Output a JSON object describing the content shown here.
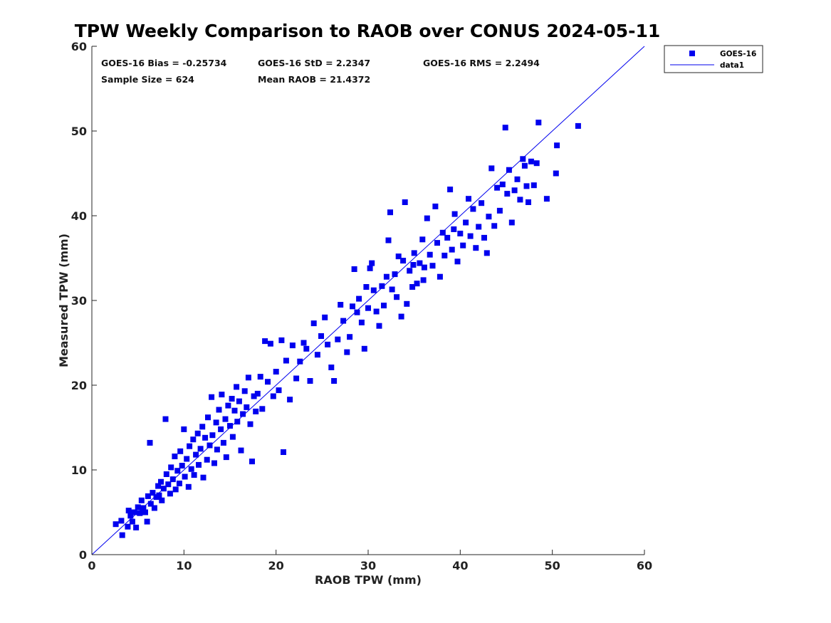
{
  "chart_data": {
    "type": "scatter",
    "title": "TPW Weekly Comparison to RAOB over CONUS 2024-05-11",
    "xlabel": "RAOB TPW (mm)",
    "ylabel": "Measured TPW (mm)",
    "xlim": [
      0,
      60
    ],
    "ylim": [
      0,
      60
    ],
    "xticks": [
      "0",
      "10",
      "20",
      "30",
      "40",
      "50",
      "60"
    ],
    "yticks": [
      "0",
      "10",
      "20",
      "30",
      "40",
      "50",
      "60"
    ],
    "grid": false,
    "legend_position": "outside-top-right",
    "stats": {
      "bias": "GOES-16 Bias = -0.25734",
      "std": "GOES-16 StD = 2.2347",
      "rms": "GOES-16 RMS = 2.2494",
      "sample": "Sample Size = 624",
      "mean": "Mean RAOB = 21.4372"
    },
    "series": [
      {
        "name": "GOES-16",
        "kind": "scatter",
        "color": "#0000ee",
        "points": [
          [
            2.6,
            3.6
          ],
          [
            3.2,
            4.0
          ],
          [
            3.3,
            2.3
          ],
          [
            3.9,
            3.3
          ],
          [
            4.0,
            5.2
          ],
          [
            4.2,
            4.6
          ],
          [
            4.4,
            3.9
          ],
          [
            4.6,
            5.0
          ],
          [
            4.8,
            3.2
          ],
          [
            5.0,
            5.6
          ],
          [
            5.2,
            4.9
          ],
          [
            5.4,
            6.4
          ],
          [
            5.6,
            5.5
          ],
          [
            5.8,
            5.0
          ],
          [
            6.0,
            3.9
          ],
          [
            6.1,
            6.9
          ],
          [
            6.3,
            13.2
          ],
          [
            6.4,
            6.0
          ],
          [
            6.6,
            7.3
          ],
          [
            6.8,
            5.5
          ],
          [
            7.0,
            6.8
          ],
          [
            7.2,
            8.1
          ],
          [
            7.3,
            7.0
          ],
          [
            7.5,
            8.6
          ],
          [
            7.6,
            6.4
          ],
          [
            7.8,
            7.8
          ],
          [
            8.0,
            16.0
          ],
          [
            8.1,
            9.5
          ],
          [
            8.3,
            8.3
          ],
          [
            8.5,
            7.2
          ],
          [
            8.6,
            10.3
          ],
          [
            8.8,
            8.9
          ],
          [
            9.0,
            11.6
          ],
          [
            9.1,
            7.7
          ],
          [
            9.3,
            9.9
          ],
          [
            9.5,
            8.4
          ],
          [
            9.6,
            12.2
          ],
          [
            9.8,
            10.5
          ],
          [
            10.0,
            14.8
          ],
          [
            10.1,
            9.2
          ],
          [
            10.3,
            11.3
          ],
          [
            10.5,
            8.0
          ],
          [
            10.6,
            12.8
          ],
          [
            10.8,
            10.1
          ],
          [
            11.0,
            13.6
          ],
          [
            11.1,
            9.4
          ],
          [
            11.3,
            11.8
          ],
          [
            11.5,
            14.3
          ],
          [
            11.6,
            10.6
          ],
          [
            11.8,
            12.5
          ],
          [
            12.0,
            15.1
          ],
          [
            12.1,
            9.1
          ],
          [
            12.3,
            13.8
          ],
          [
            12.5,
            11.2
          ],
          [
            12.6,
            16.2
          ],
          [
            12.8,
            12.9
          ],
          [
            13.0,
            18.6
          ],
          [
            13.1,
            14.1
          ],
          [
            13.3,
            10.8
          ],
          [
            13.5,
            15.6
          ],
          [
            13.6,
            12.4
          ],
          [
            13.8,
            17.1
          ],
          [
            14.0,
            14.8
          ],
          [
            14.1,
            18.9
          ],
          [
            14.3,
            13.2
          ],
          [
            14.5,
            16.0
          ],
          [
            14.6,
            11.5
          ],
          [
            14.8,
            17.6
          ],
          [
            15.0,
            15.2
          ],
          [
            15.2,
            18.4
          ],
          [
            15.3,
            13.9
          ],
          [
            15.5,
            17.0
          ],
          [
            15.7,
            19.8
          ],
          [
            15.8,
            15.7
          ],
          [
            16.0,
            18.1
          ],
          [
            16.2,
            12.3
          ],
          [
            16.4,
            16.6
          ],
          [
            16.6,
            19.3
          ],
          [
            16.8,
            17.4
          ],
          [
            17.0,
            20.9
          ],
          [
            17.2,
            15.4
          ],
          [
            17.4,
            11.0
          ],
          [
            17.6,
            18.7
          ],
          [
            17.8,
            16.9
          ],
          [
            18.0,
            19.0
          ],
          [
            18.3,
            21.0
          ],
          [
            18.5,
            17.2
          ],
          [
            18.8,
            25.2
          ],
          [
            19.1,
            20.4
          ],
          [
            19.4,
            24.9
          ],
          [
            19.7,
            18.7
          ],
          [
            20.0,
            21.6
          ],
          [
            20.3,
            19.4
          ],
          [
            20.6,
            25.3
          ],
          [
            20.8,
            12.1
          ],
          [
            21.1,
            22.9
          ],
          [
            21.5,
            18.3
          ],
          [
            21.8,
            24.7
          ],
          [
            22.2,
            20.8
          ],
          [
            22.6,
            22.8
          ],
          [
            23.0,
            25.0
          ],
          [
            23.3,
            24.3
          ],
          [
            23.7,
            20.5
          ],
          [
            24.1,
            27.3
          ],
          [
            24.5,
            23.6
          ],
          [
            24.9,
            25.8
          ],
          [
            25.3,
            28.0
          ],
          [
            25.6,
            24.8
          ],
          [
            26.0,
            22.1
          ],
          [
            26.3,
            20.5
          ],
          [
            26.7,
            25.4
          ],
          [
            27.0,
            29.5
          ],
          [
            27.3,
            27.6
          ],
          [
            27.7,
            23.9
          ],
          [
            28.0,
            25.7
          ],
          [
            28.3,
            29.3
          ],
          [
            28.5,
            33.7
          ],
          [
            28.8,
            28.6
          ],
          [
            29.0,
            30.2
          ],
          [
            29.3,
            27.4
          ],
          [
            29.6,
            24.3
          ],
          [
            29.8,
            31.6
          ],
          [
            30.0,
            29.1
          ],
          [
            30.2,
            33.8
          ],
          [
            30.4,
            34.4
          ],
          [
            30.6,
            31.2
          ],
          [
            30.9,
            28.7
          ],
          [
            31.2,
            27.0
          ],
          [
            31.5,
            31.7
          ],
          [
            31.7,
            29.4
          ],
          [
            32.0,
            32.8
          ],
          [
            32.2,
            37.1
          ],
          [
            32.4,
            40.4
          ],
          [
            32.6,
            31.3
          ],
          [
            32.9,
            33.1
          ],
          [
            33.1,
            30.4
          ],
          [
            33.3,
            35.2
          ],
          [
            33.6,
            28.1
          ],
          [
            33.8,
            34.7
          ],
          [
            34.0,
            41.6
          ],
          [
            34.2,
            29.6
          ],
          [
            34.5,
            33.5
          ],
          [
            34.8,
            31.6
          ],
          [
            35.0,
            35.6
          ],
          [
            35.3,
            32.0
          ],
          [
            35.6,
            34.4
          ],
          [
            35.9,
            37.2
          ],
          [
            36.1,
            33.9
          ],
          [
            36.4,
            39.7
          ],
          [
            36.7,
            35.4
          ],
          [
            37.0,
            34.1
          ],
          [
            37.3,
            41.1
          ],
          [
            37.5,
            36.8
          ],
          [
            37.8,
            32.8
          ],
          [
            38.1,
            38.0
          ],
          [
            38.3,
            35.3
          ],
          [
            38.6,
            37.4
          ],
          [
            38.9,
            43.1
          ],
          [
            39.1,
            36.0
          ],
          [
            39.4,
            40.2
          ],
          [
            39.7,
            34.6
          ],
          [
            40.0,
            37.9
          ],
          [
            40.3,
            36.5
          ],
          [
            40.6,
            39.2
          ],
          [
            40.9,
            42.0
          ],
          [
            41.1,
            37.6
          ],
          [
            41.4,
            40.8
          ],
          [
            41.7,
            36.2
          ],
          [
            42.0,
            38.7
          ],
          [
            42.3,
            41.5
          ],
          [
            42.6,
            37.4
          ],
          [
            42.9,
            35.6
          ],
          [
            43.1,
            39.9
          ],
          [
            43.4,
            45.6
          ],
          [
            43.7,
            38.8
          ],
          [
            44.0,
            43.3
          ],
          [
            44.3,
            40.6
          ],
          [
            44.6,
            43.7
          ],
          [
            44.9,
            50.4
          ],
          [
            45.1,
            42.6
          ],
          [
            45.3,
            45.4
          ],
          [
            45.6,
            39.2
          ],
          [
            45.9,
            43.0
          ],
          [
            46.2,
            44.3
          ],
          [
            46.5,
            41.9
          ],
          [
            46.8,
            46.7
          ],
          [
            47.0,
            45.9
          ],
          [
            47.2,
            43.5
          ],
          [
            47.4,
            41.6
          ],
          [
            47.7,
            46.4
          ],
          [
            48.0,
            43.6
          ],
          [
            48.3,
            46.2
          ],
          [
            48.5,
            51.0
          ],
          [
            49.4,
            42.0
          ],
          [
            50.4,
            45.0
          ],
          [
            50.5,
            48.3
          ],
          [
            52.8,
            50.6
          ],
          [
            36.0,
            32.4
          ],
          [
            34.9,
            34.2
          ],
          [
            39.3,
            38.4
          ]
        ]
      },
      {
        "name": "data1",
        "kind": "line",
        "color": "#0000ee",
        "points": [
          [
            0,
            0
          ],
          [
            60,
            60
          ]
        ]
      }
    ]
  }
}
